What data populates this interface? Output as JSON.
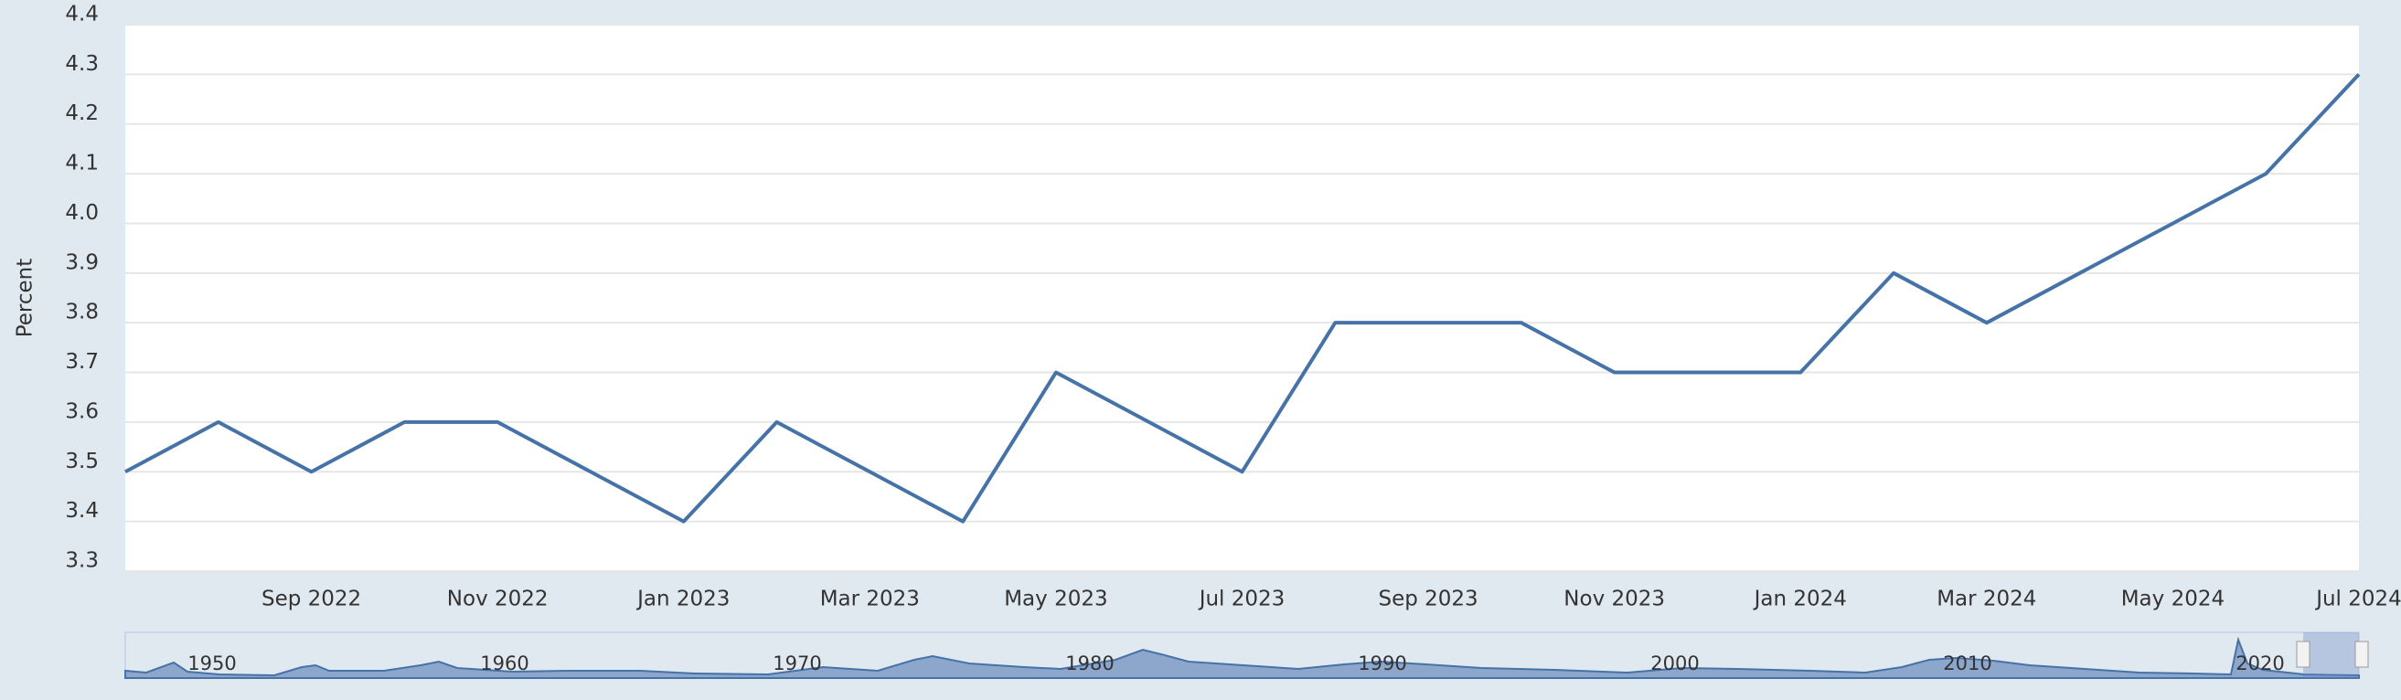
{
  "chart_data": {
    "type": "line",
    "y_label": "Percent",
    "categories": [
      null,
      null,
      "Sep 2022",
      null,
      "Nov 2022",
      null,
      "Jan 2023",
      null,
      "Mar 2023",
      null,
      "May 2023",
      null,
      "Jul 2023",
      null,
      "Sep 2023",
      null,
      "Nov 2023",
      null,
      "Jan 2024",
      null,
      "Mar 2024",
      null,
      "May 2024",
      null,
      "Jul 2024"
    ],
    "values": [
      3.5,
      3.6,
      3.5,
      3.6,
      3.6,
      3.5,
      3.4,
      3.6,
      3.5,
      3.4,
      3.7,
      3.6,
      3.5,
      3.8,
      3.8,
      3.8,
      3.7,
      3.7,
      3.7,
      3.9,
      3.8,
      3.9,
      4.0,
      4.1,
      4.3
    ],
    "color": "#4572a7",
    "ylim": [
      3.3,
      4.4
    ],
    "yticks": [
      3.3,
      3.4,
      3.5,
      3.6,
      3.7,
      3.8,
      3.9,
      {
        "value": 4,
        "label": "4.0"
      },
      4.1,
      4.2,
      4.3,
      4.4
    ],
    "grid": true,
    "navigator_labels": [
      "1950",
      "1960",
      "1970",
      "1980",
      "1990",
      "2000",
      "2010",
      "2020"
    ]
  }
}
